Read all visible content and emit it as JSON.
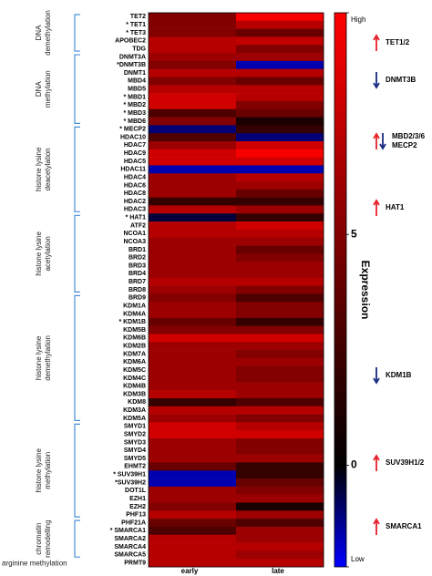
{
  "chart_data": {
    "type": "heatmap",
    "categories": [
      "early",
      "late"
    ],
    "zlim": [
      -2.2,
      9.8
    ],
    "zcenter": 0,
    "colors": [
      "#0000ff",
      "#000000",
      "#ff0000"
    ],
    "zticks": [
      {
        "value": 9.8,
        "label": "High"
      },
      5,
      0,
      {
        "value": -2.2,
        "label": "Low"
      }
    ],
    "colorbar_label": "Expression",
    "groups": [
      {
        "label": [
          "DNA",
          "demethylation"
        ],
        "rows": [
          {
            "label": "TET2",
            "values": [
              5,
              9.5
            ]
          },
          {
            "label": "* TET1",
            "values": [
              5,
              7
            ]
          },
          {
            "label": "* TET3",
            "values": [
              5,
              4
            ]
          },
          {
            "label": "APOBEC2",
            "values": [
              7,
              7.5
            ]
          },
          {
            "label": "TDG",
            "values": [
              7,
              5
            ]
          }
        ]
      },
      {
        "label": [
          "DNA",
          "methylation"
        ],
        "rows": [
          {
            "label": "DNMT3A",
            "values": [
              6,
              6
            ]
          },
          {
            "label": "*DNMT3B",
            "values": [
              5,
              -1.5
            ]
          },
          {
            "label": "DNMT1",
            "values": [
              7,
              7
            ]
          },
          {
            "label": "MBD4",
            "values": [
              5,
              4
            ]
          },
          {
            "label": "MBD5",
            "values": [
              7,
              7
            ]
          },
          {
            "label": "* MBD1",
            "values": [
              8,
              7
            ]
          },
          {
            "label": "* MBD2",
            "values": [
              8,
              5
            ]
          },
          {
            "label": "* MBD3",
            "values": [
              3,
              4
            ]
          },
          {
            "label": "* MBD6",
            "values": [
              5,
              1
            ]
          }
        ]
      },
      {
        "label": [
          "histone lysine",
          "deacetylation"
        ],
        "rows": [
          {
            "label": "* MECP2",
            "values": [
              -1,
              2
            ]
          },
          {
            "label": "HDAC10",
            "values": [
              3,
              -1
            ]
          },
          {
            "label": "HDAC7",
            "values": [
              6,
              8
            ]
          },
          {
            "label": "HDAC9",
            "values": [
              8,
              9.5
            ]
          },
          {
            "label": "HDAC5",
            "values": [
              8,
              8
            ]
          },
          {
            "label": "HDAC11",
            "values": [
              -1.5,
              -1.5
            ]
          },
          {
            "label": "HDAC4",
            "values": [
              6,
              7
            ]
          },
          {
            "label": "HDAC6",
            "values": [
              6,
              6
            ]
          },
          {
            "label": "HDAC8",
            "values": [
              6,
              4
            ]
          },
          {
            "label": "HDAC2",
            "values": [
              2,
              2
            ]
          },
          {
            "label": "HDAC3",
            "values": [
              7,
              6
            ]
          }
        ]
      },
      {
        "label": [
          "histone lysine",
          "acetylation"
        ],
        "rows": [
          {
            "label": "* HAT1",
            "values": [
              -0.5,
              2
            ]
          },
          {
            "label": "ATF2",
            "values": [
              7,
              8
            ]
          },
          {
            "label": "NCOA1",
            "values": [
              7,
              7
            ]
          },
          {
            "label": "NCOA3",
            "values": [
              6,
              6
            ]
          },
          {
            "label": "BRD1",
            "values": [
              6,
              4
            ]
          },
          {
            "label": "BRD2",
            "values": [
              6,
              5
            ]
          },
          {
            "label": "BRD3",
            "values": [
              6,
              6
            ]
          },
          {
            "label": "BRD4",
            "values": [
              6,
              6
            ]
          },
          {
            "label": "BRD7",
            "values": [
              7,
              7
            ]
          },
          {
            "label": "BRD8",
            "values": [
              6,
              5
            ]
          }
        ]
      },
      {
        "label": [
          "histone lysine",
          "demethylation"
        ],
        "rows": [
          {
            "label": "BRD9",
            "values": [
              5,
              3
            ]
          },
          {
            "label": "KDM1A",
            "values": [
              6,
              5
            ]
          },
          {
            "label": "KDM4A",
            "values": [
              6,
              5
            ]
          },
          {
            "label": "* KDM1B",
            "values": [
              4,
              2
            ]
          },
          {
            "label": "KDM5B",
            "values": [
              5,
              5
            ]
          },
          {
            "label": "KDM6B",
            "values": [
              8,
              8
            ]
          },
          {
            "label": "KDM2B",
            "values": [
              6,
              6
            ]
          },
          {
            "label": "KDM7A",
            "values": [
              6,
              5
            ]
          },
          {
            "label": "KDM6A",
            "values": [
              6,
              6
            ]
          },
          {
            "label": "KDM5C",
            "values": [
              6,
              5
            ]
          },
          {
            "label": "KDM4C",
            "values": [
              6,
              5
            ]
          },
          {
            "label": "KDM4B",
            "values": [
              6,
              6
            ]
          },
          {
            "label": "KDM3B",
            "values": [
              7,
              6
            ]
          },
          {
            "label": "KDM8",
            "values": [
              2,
              3
            ]
          },
          {
            "label": "KDM3A",
            "values": [
              7,
              7
            ]
          },
          {
            "label": "KDM5A",
            "values": [
              6,
              5
            ]
          }
        ]
      },
      {
        "label": [
          "histone lysine",
          "methylation"
        ],
        "rows": [
          {
            "label": "SMYD1",
            "values": [
              8,
              7
            ]
          },
          {
            "label": "SMYD2",
            "values": [
              8,
              8
            ]
          },
          {
            "label": "SMYD3",
            "values": [
              6,
              5
            ]
          },
          {
            "label": "SMYD4",
            "values": [
              6,
              5
            ]
          },
          {
            "label": "SMYD5",
            "values": [
              6,
              6
            ]
          },
          {
            "label": "EHMT2",
            "values": [
              4,
              2
            ]
          },
          {
            "label": "* SUV39H1",
            "values": [
              -1.5,
              2
            ]
          },
          {
            "label": "*SUV39H2",
            "values": [
              -1.5,
              4
            ]
          },
          {
            "label": "DOT1L",
            "values": [
              6,
              5
            ]
          },
          {
            "label": "EZH1",
            "values": [
              6,
              6
            ]
          },
          {
            "label": "EZH2",
            "values": [
              5,
              1
            ]
          },
          {
            "label": "PHF13",
            "values": [
              7,
              6
            ]
          }
        ]
      },
      {
        "label": [
          "chromatin",
          "remodelling"
        ],
        "rows": [
          {
            "label": "PHF21A",
            "values": [
              4,
              3
            ]
          },
          {
            "label": "* SMARCA1",
            "values": [
              3,
              6
            ]
          },
          {
            "label": "SMARCA2",
            "values": [
              7,
              6
            ]
          },
          {
            "label": "SMARCA4",
            "values": [
              7,
              7
            ]
          },
          {
            "label": "SMARCA5",
            "values": [
              7,
              6
            ]
          }
        ]
      },
      {
        "label": [
          "arginine methylation"
        ],
        "rows": [
          {
            "label": "PRMT9",
            "values": [
              7,
              7
            ]
          }
        ]
      }
    ],
    "annotations": [
      {
        "label": [
          "TET1/2"
        ],
        "direction": "up"
      },
      {
        "label": [
          "DNMT3B"
        ],
        "direction": "down"
      },
      {
        "label": [
          "MBD2/3/6",
          "MECP2"
        ],
        "direction": "both"
      },
      {
        "label": [
          "HAT1"
        ],
        "direction": "up"
      },
      {
        "label": [
          "KDM1B"
        ],
        "direction": "down"
      },
      {
        "label": [
          "SUV39H1/2"
        ],
        "direction": "up"
      },
      {
        "label": [
          "SMARCA1"
        ],
        "direction": "up"
      }
    ]
  }
}
